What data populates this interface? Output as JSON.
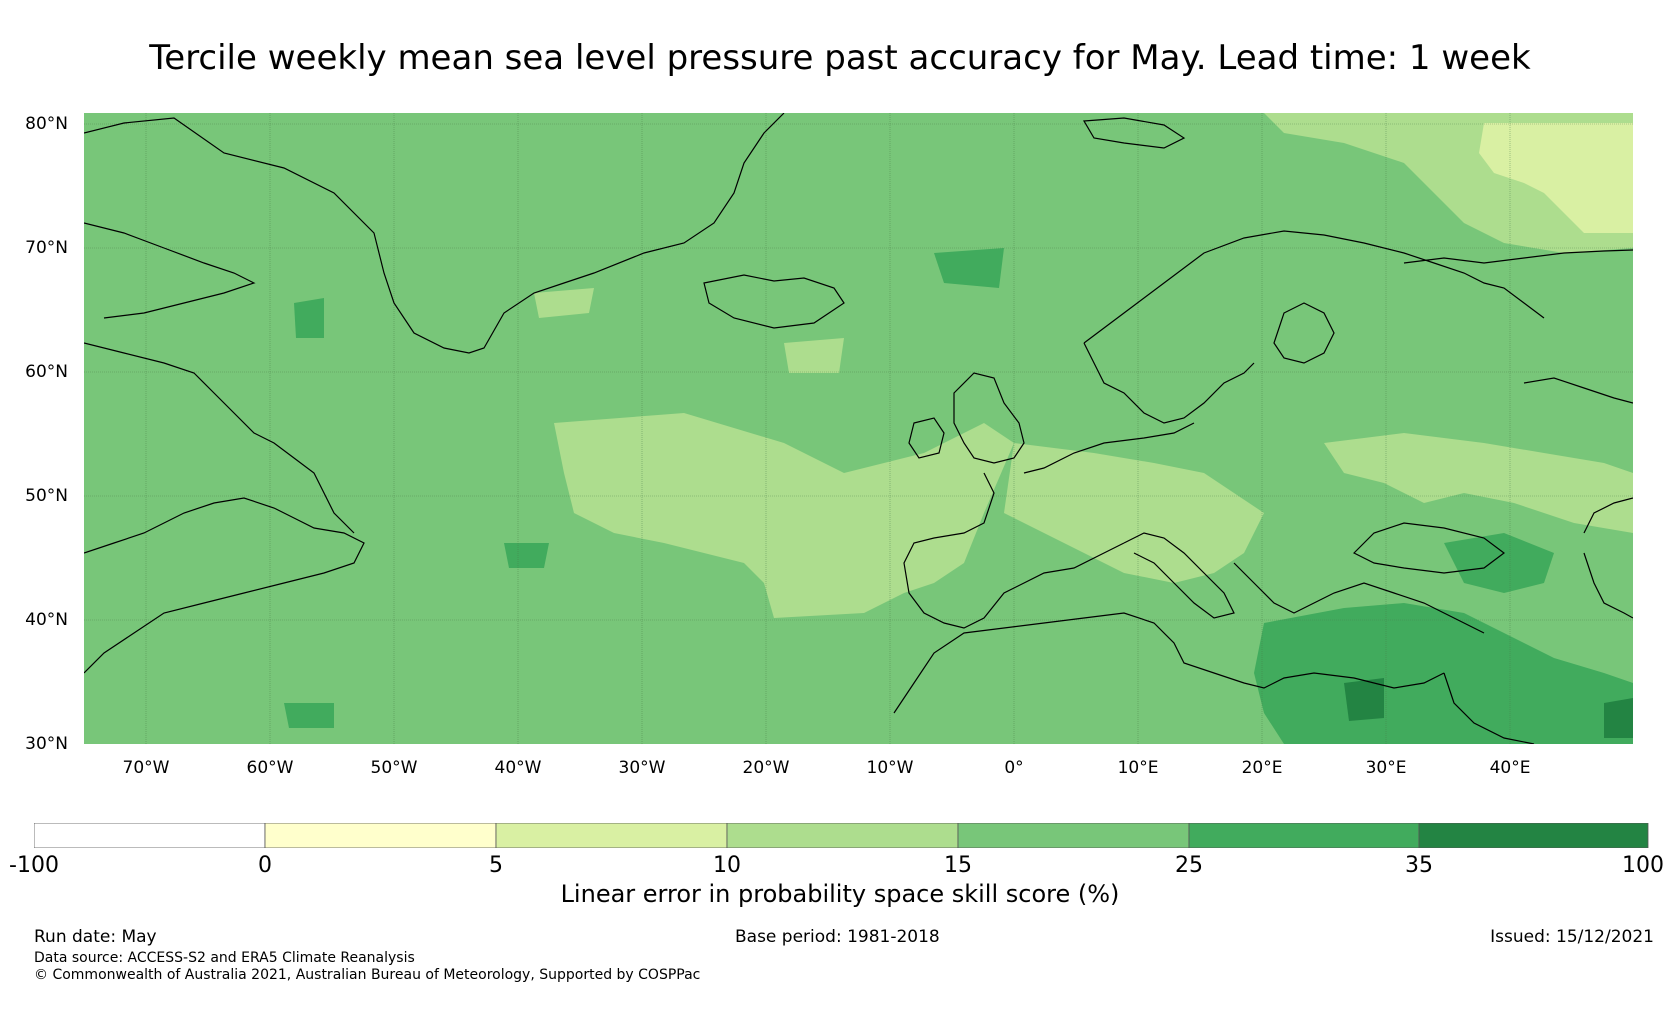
{
  "title": "Tercile weekly mean sea level pressure past accuracy for May. Lead time: 1 week",
  "map": {
    "lat_labels": [
      "80°N",
      "70°N",
      "60°N",
      "50°N",
      "40°N",
      "30°N"
    ],
    "lon_labels": [
      "70°W",
      "60°W",
      "50°W",
      "40°W",
      "30°W",
      "20°W",
      "10°W",
      "0°",
      "10°E",
      "20°E",
      "30°E",
      "40°E"
    ],
    "lon_range": [
      -75,
      50
    ],
    "lat_range": [
      30,
      81
    ],
    "regions": [
      {
        "name": "base",
        "category": "15-25"
      },
      {
        "name": "north-atlantic-central",
        "category": "10-15"
      },
      {
        "name": "western-europe",
        "category": "10-15"
      },
      {
        "name": "eastern-europe",
        "category": "10-15"
      },
      {
        "name": "arctic-north-russia",
        "category": "10-15"
      },
      {
        "name": "barents-sea",
        "category": "5-10"
      },
      {
        "name": "eastern-mediterranean",
        "category": "25-35"
      },
      {
        "name": "black-sea-east",
        "category": "25-35"
      },
      {
        "name": "levant-core",
        "category": "35-100"
      }
    ]
  },
  "colorbar": {
    "label": "Linear error in probability space skill score (%)",
    "ticks": [
      "-100",
      "0",
      "5",
      "10",
      "15",
      "25",
      "35",
      "100"
    ],
    "colors": [
      "#ffffff",
      "#ffffcc",
      "#d9f0a3",
      "#addd8e",
      "#78c679",
      "#41ab5d",
      "#238443"
    ]
  },
  "footer": {
    "run_date": "Run date: May",
    "base_period": "Base period: 1981-2018",
    "issued": "Issued: 15/12/2021",
    "data_source": "Data source: ACCESS-S2 and ERA5 Climate Reanalysis",
    "copyright": "© Commonwealth of Australia 2021, Australian Bureau of Meteorology, Supported by COSPPac"
  }
}
